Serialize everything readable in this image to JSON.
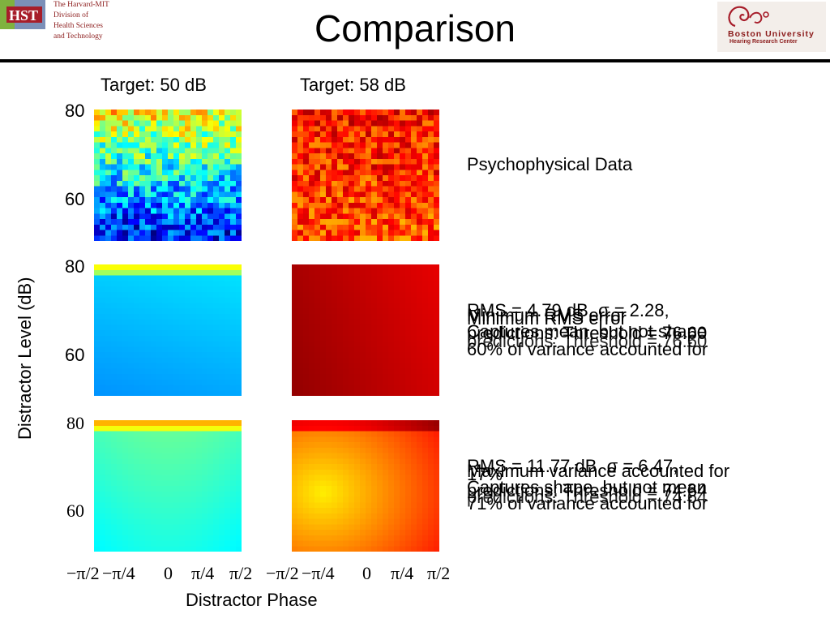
{
  "slide": {
    "title": "Comparison",
    "logo_left": {
      "lettering": "HST",
      "lines": [
        "The Harvard-MIT",
        "Division of",
        "Health Sciences",
        "and Technology"
      ]
    },
    "logo_right": {
      "name": "Boston University",
      "subtitle": "Hearing Research Center"
    }
  },
  "figure": {
    "column_titles": [
      "Target: 50 dB",
      "Target: 58 dB"
    ],
    "y_ticks": [
      "80",
      "60"
    ],
    "y_label": "Distractor Level (dB)",
    "x_ticks": [
      "−π/2",
      "−π/4",
      "0",
      "π/4",
      "π/2"
    ],
    "x_label": "Distractor Phase",
    "colormap": "jet",
    "row_labels": [
      "Psychophysical Data"
    ]
  },
  "annotations": {
    "row2": {
      "layers": [
        "RMS = 4.79 dB, σ = 2.28,",
        "Minimum RMS error",
        "Minimum RMS error",
        "predictions: Threshold = 76.60",
        "Captures mean, but not shape",
        "predictions: Threshold = 76.60",
        "60% of variance accounted for"
      ]
    },
    "row3": {
      "layers": [
        "RMS = 11.77 dB, σ = 6.47,",
        "Maximum variance accounted for",
        "17% ",
        "predictions: Threshold = 74.64",
        "Captures shape, but not mean",
        "predictions: Threshold = 74.64",
        "71% of variance accounted for"
      ]
    }
  }
}
